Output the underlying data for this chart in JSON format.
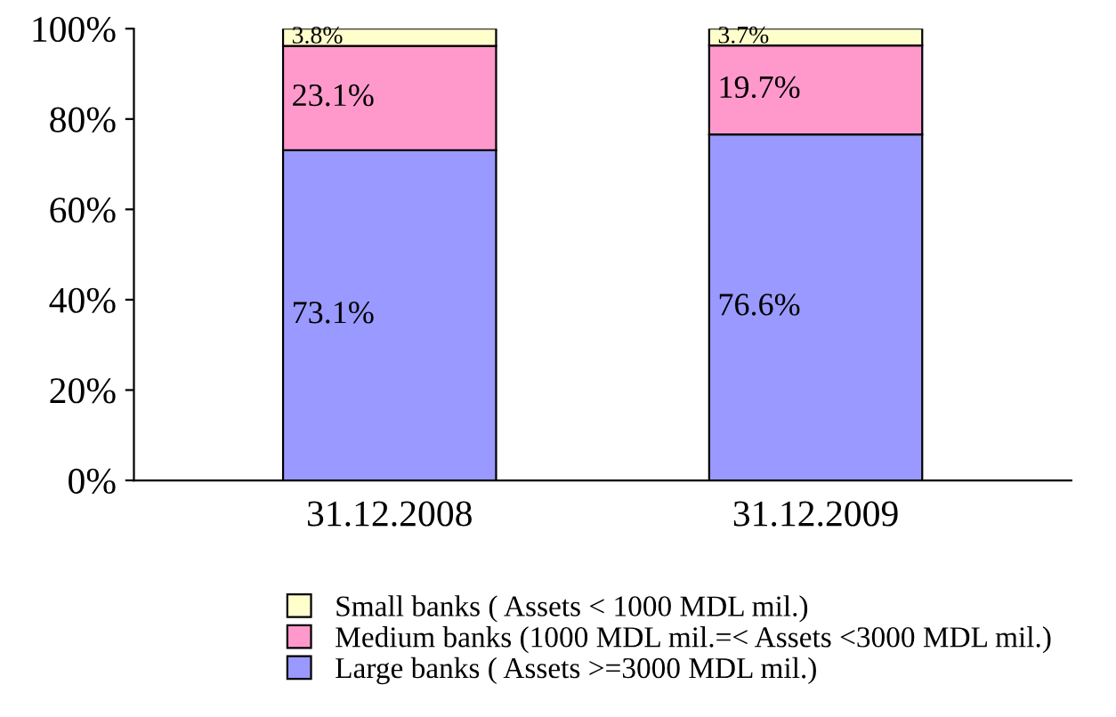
{
  "chart_data": {
    "type": "bar",
    "stacked": true,
    "categories": [
      "31.12.2008",
      "31.12.2009"
    ],
    "series": [
      {
        "name": "Large banks ( Assets >=3000 MDL mil.)",
        "color": "#9999ff",
        "values": [
          73.1,
          76.6
        ],
        "value_labels": [
          "73.1%",
          "76.6%"
        ]
      },
      {
        "name": "Medium banks (1000 MDL mil.=< Assets <3000 MDL mil.)",
        "color": "#ff99cc",
        "values": [
          23.1,
          19.7
        ],
        "value_labels": [
          "23.1%",
          "19.7%"
        ]
      },
      {
        "name": "Small banks ( Assets < 1000 MDL mil.)",
        "color": "#ffffcc",
        "values": [
          3.8,
          3.7
        ],
        "value_labels": [
          "3.8%",
          "3.7%"
        ]
      }
    ],
    "ylim": [
      0,
      100
    ],
    "yticks": [
      {
        "value": 0,
        "label": "0%"
      },
      {
        "value": 20,
        "label": "20%"
      },
      {
        "value": 40,
        "label": "40%"
      },
      {
        "value": 60,
        "label": "60%"
      },
      {
        "value": 80,
        "label": "80%"
      },
      {
        "value": 100,
        "label": "100%"
      }
    ],
    "grid": false,
    "legend": "bottom"
  }
}
